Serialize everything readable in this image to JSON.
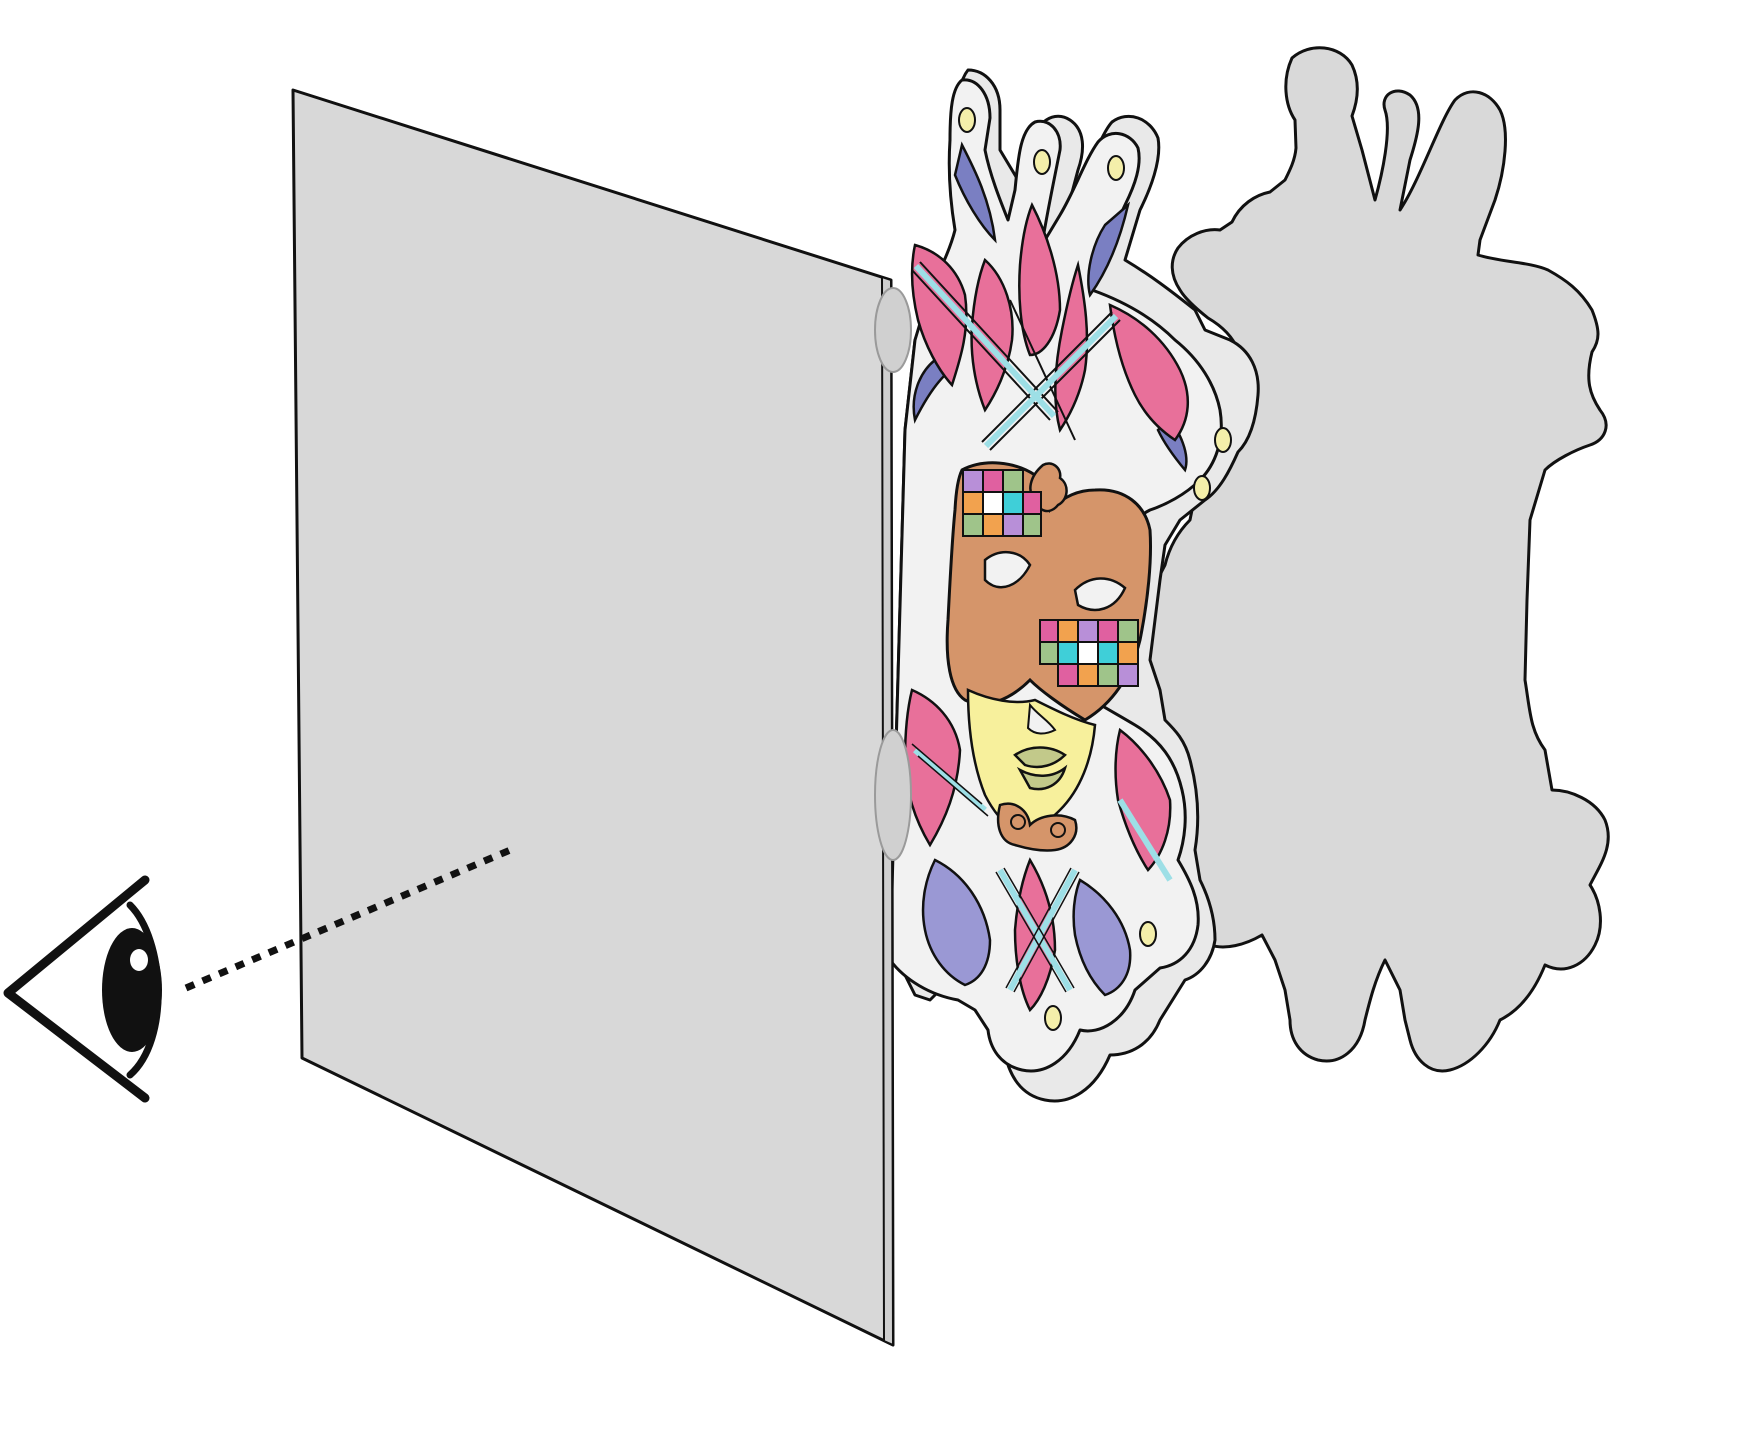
{
  "diagram": {
    "labels": [],
    "icons": {
      "viewer": "eye-icon",
      "screen": "translucent-screen-panel",
      "subject": "carnival-mask-cutout",
      "shadow": "mask-shadow-silhouette"
    },
    "colors": {
      "background": "#ffffff",
      "outline": "#111111",
      "screen_fill": "#d6d6d6",
      "shadow_fill": "#d9d9d9",
      "mask_base": "#f2f2f2",
      "pink": "#e8709a",
      "purple": "#7a7fc2",
      "lavender": "#9a98d4",
      "cyan": "#9ddfe6",
      "tan": "#d5956a",
      "yellow": "#f7f09c",
      "pale_yellow": "#f4efaa",
      "olive": "#c2c98a",
      "orange": "#f2a24e",
      "teal": "#3fcfd8",
      "violet": "#b88fd8",
      "green": "#9fc48a",
      "magenta": "#e060a0"
    }
  }
}
